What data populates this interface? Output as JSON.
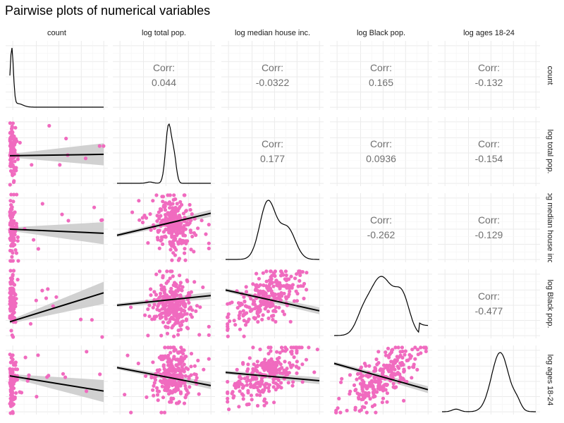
{
  "title": "Pairwise plots of numerical variables",
  "chart_data": {
    "type": "scatter",
    "title": "Pairwise plots of numerical variables",
    "variables": [
      "count",
      "log total pop.",
      "log median house inc.",
      "log Black pop.",
      "log ages 18-24"
    ],
    "correlation_label": "Corr:",
    "correlations": [
      {
        "row": "count",
        "col": "log total pop.",
        "value": "0.044"
      },
      {
        "row": "count",
        "col": "log median house inc.",
        "value": "-0.0322"
      },
      {
        "row": "count",
        "col": "log Black pop.",
        "value": "0.165"
      },
      {
        "row": "count",
        "col": "log ages 18-24",
        "value": "-0.132"
      },
      {
        "row": "log total pop.",
        "col": "log median house inc.",
        "value": "0.177"
      },
      {
        "row": "log total pop.",
        "col": "log Black pop.",
        "value": "0.0936"
      },
      {
        "row": "log total pop.",
        "col": "log ages 18-24",
        "value": "-0.154"
      },
      {
        "row": "log median house inc.",
        "col": "log Black pop.",
        "value": "-0.262"
      },
      {
        "row": "log median house inc.",
        "col": "log ages 18-24",
        "value": "-0.129"
      },
      {
        "row": "log Black pop.",
        "col": "log ages 18-24",
        "value": "-0.477"
      }
    ],
    "diagonal": "density",
    "lower_panels": "scatter with linear fit and confidence band",
    "point_color": "#f06bbf",
    "fit_color": "#000000",
    "band_color": "#cccccc",
    "grid": true
  }
}
